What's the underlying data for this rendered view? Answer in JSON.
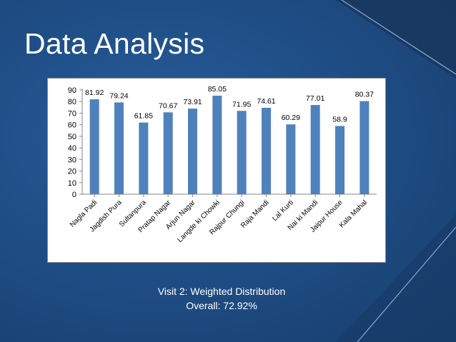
{
  "slide": {
    "title": "Data Analysis",
    "caption_line1": "Visit 2: Weighted Distribution",
    "caption_line2": "Overall: 72.92%"
  },
  "colors": {
    "background": "#1f4e86",
    "bar": "#4f81bd",
    "accent_line": "#7f9fc4"
  },
  "chart_data": {
    "type": "bar",
    "categories": [
      "Nagla Padi",
      "Jagdish Pura",
      "Sultanpura",
      "Pratap Nagar",
      "Arjun Nagar",
      "Langde ki Chowki",
      "Rajpur Chungi",
      "Raja Mandi",
      "Lal Kurti",
      "Nai ki Mandi",
      "Jaipur House",
      "Kala Mahal"
    ],
    "values": [
      81.92,
      79.24,
      61.85,
      70.67,
      73.91,
      85.05,
      71.95,
      74.61,
      60.29,
      77.01,
      58.9,
      80.37
    ],
    "value_labels": [
      "81.92",
      "79.24",
      "61.85",
      "70.67",
      "73.91",
      "85.05",
      "71.95",
      "74.61",
      "60.29",
      "77.01",
      "58.9",
      "80.37"
    ],
    "yticks": [
      "0",
      "10",
      "20",
      "30",
      "40",
      "50",
      "60",
      "70",
      "80",
      "90"
    ],
    "ylim": [
      0,
      90
    ],
    "title": "",
    "xlabel": "",
    "ylabel": "",
    "grid": false,
    "legend": "none"
  }
}
